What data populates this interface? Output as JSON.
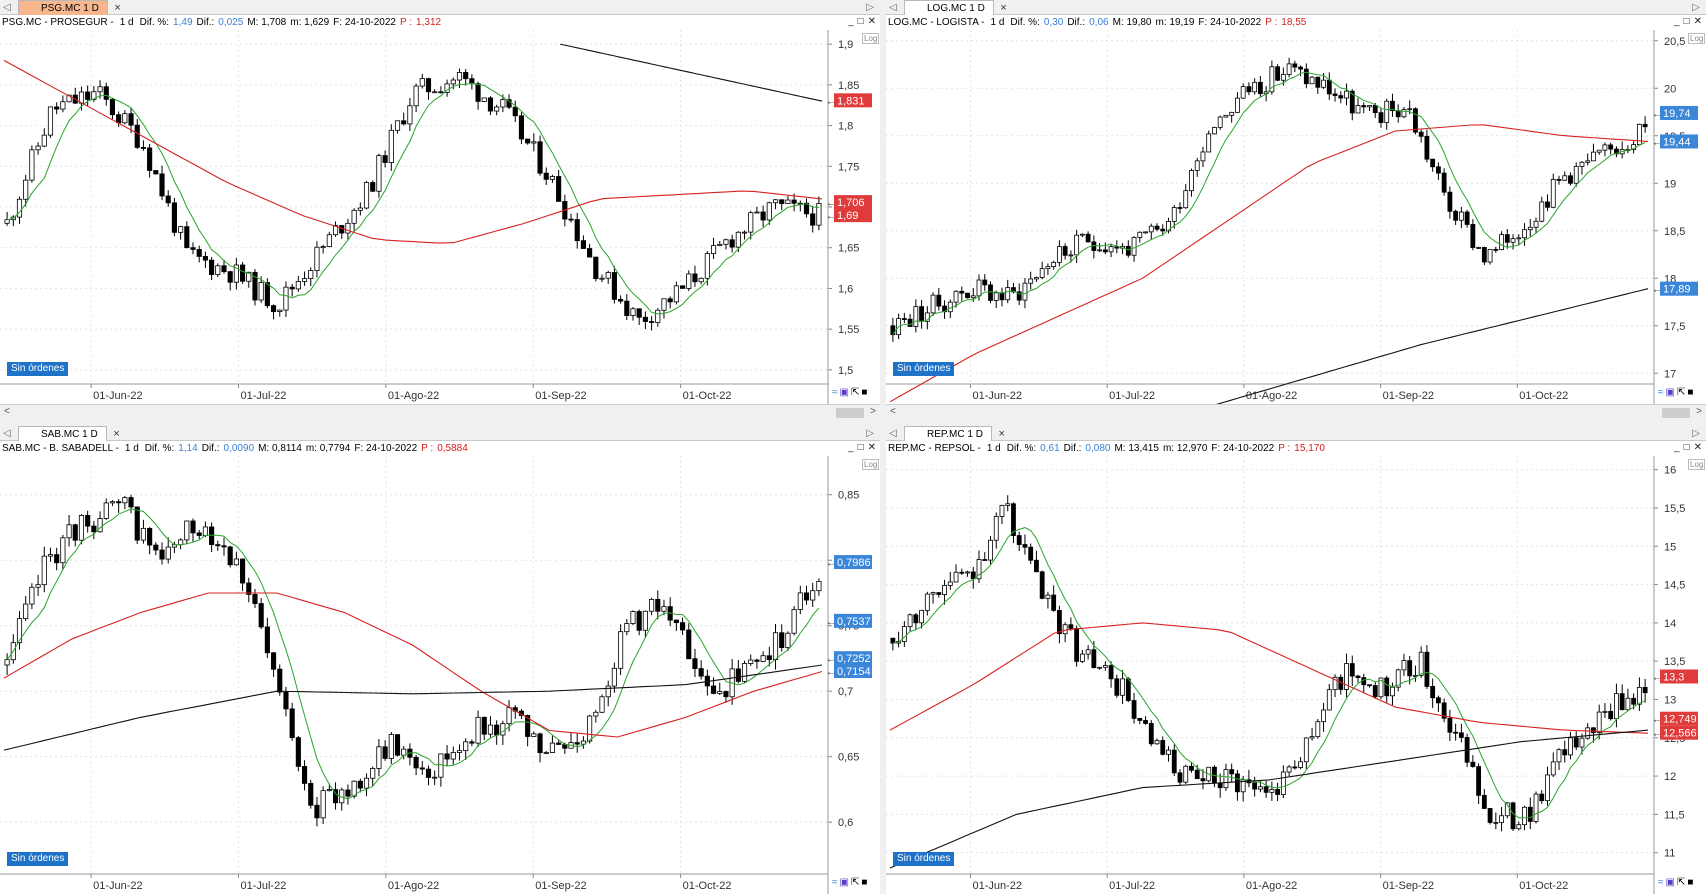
{
  "panels": [
    {
      "id": "psg",
      "tab": "PSG.MC 1 D",
      "tab_active": true,
      "header": {
        "name": "PSG.MC - PROSEGUR -",
        "tf": "1 d",
        "difpct_label": "Dif. %:",
        "difpct": "1,49",
        "dif_label": "Dif.:",
        "dif": "0,025",
        "m_high": "M: 1,708",
        "m_low": "m: 1,629",
        "date": "F: 24-10-2022",
        "p_label": "P :",
        "p": "1,312"
      },
      "log_label": "Log",
      "sin_ordenes": "Sin órdenes",
      "yticks": [
        "1,9",
        "1,85",
        "1,8",
        "1,75",
        "1,7",
        "1,65",
        "1,6",
        "1,55",
        "1,5"
      ],
      "ymin": 1.49,
      "ymax": 1.91,
      "xticks": [
        "01-Jun-22",
        "01-Jul-22",
        "01-Ago-22",
        "01-Sep-22",
        "01-Oct-22"
      ],
      "price_labels": [
        {
          "value": "1,831",
          "v": 1.831,
          "color": "#e03a3a"
        },
        {
          "value": "1,706",
          "v": 1.706,
          "color": "#e03a3a"
        },
        {
          "value": "1,69",
          "v": 1.69,
          "color": "#e03a3a"
        }
      ],
      "seed": 11,
      "ma200": [
        1.9,
        1.83
      ],
      "ma50": [
        1.88,
        1.83,
        1.78,
        1.73,
        1.69,
        1.66,
        1.655,
        1.68,
        1.71,
        1.715,
        1.72,
        1.71
      ],
      "trend": [
        1.68,
        1.82,
        1.84,
        1.78,
        1.64,
        1.62,
        1.58,
        1.65,
        1.72,
        1.84,
        1.86,
        1.82,
        1.74,
        1.63,
        1.56,
        1.6,
        1.66,
        1.7,
        1.69
      ]
    },
    {
      "id": "log",
      "tab": "LOG.MC 1 D",
      "tab_active": false,
      "header": {
        "name": "LOG.MC - LOGISTA -",
        "tf": "1 d",
        "difpct_label": "Dif. %:",
        "difpct": "0,30",
        "dif_label": "Dif.:",
        "dif": "0,06",
        "m_high": "M: 19,80",
        "m_low": "m: 19,19",
        "date": "F: 24-10-2022",
        "p_label": "P :",
        "p": "18,55"
      },
      "log_label": "Log",
      "sin_ordenes": "Sin órdenes",
      "yticks": [
        "20,5",
        "20",
        "19,5",
        "19",
        "18,5",
        "18",
        "17,5",
        "17"
      ],
      "ymin": 16.95,
      "ymax": 20.55,
      "xticks": [
        "01-Jun-22",
        "01-Jul-22",
        "01-Ago-22",
        "01-Sep-22",
        "01-Oct-22"
      ],
      "price_labels": [
        {
          "value": "19,74",
          "v": 19.74,
          "color": "#3a86d8"
        },
        {
          "value": "19,44",
          "v": 19.44,
          "color": "#3a86d8"
        },
        {
          "value": "17,89",
          "v": 17.89,
          "color": "#3a86d8"
        }
      ],
      "seed": 23,
      "ma200": [
        16.6,
        17.3,
        17.89
      ],
      "ma50": [
        16.7,
        17.2,
        17.6,
        18.0,
        18.6,
        19.2,
        19.55,
        19.62,
        19.5,
        19.44
      ],
      "trend": [
        17.5,
        17.7,
        17.9,
        17.8,
        18.2,
        18.4,
        18.3,
        18.6,
        19.6,
        20.0,
        20.2,
        20.0,
        19.7,
        19.8,
        18.8,
        18.2,
        18.6,
        19.1,
        19.3,
        19.6
      ]
    },
    {
      "id": "sab",
      "tab": "SAB.MC 1 D",
      "tab_active": false,
      "header": {
        "name": "SAB.MC - B. SABADELL -",
        "tf": "1 d",
        "difpct_label": "Dif. %:",
        "difpct": "1,14",
        "dif_label": "Dif.:",
        "dif": "0,0090",
        "m_high": "M: 0,8114",
        "m_low": "m: 0,7794",
        "date": "F: 24-10-2022",
        "p_label": "P :",
        "p": "0,5884"
      },
      "log_label": "Log",
      "sin_ordenes": "Sin órdenes",
      "yticks": [
        "0,85",
        "0,8",
        "0,75",
        "0,7",
        "0,65",
        "0,6"
      ],
      "ymin": 0.565,
      "ymax": 0.875,
      "xticks": [
        "01-Jun-22",
        "01-Jul-22",
        "01-Ago-22",
        "01-Sep-22",
        "01-Oct-22"
      ],
      "price_labels": [
        {
          "value": "0,7986",
          "v": 0.7986,
          "color": "#3a86d8"
        },
        {
          "value": "0,7537",
          "v": 0.7537,
          "color": "#3a86d8"
        },
        {
          "value": "0,7252",
          "v": 0.7252,
          "color": "#3a86d8"
        },
        {
          "value": "0,7154",
          "v": 0.7154,
          "color": "#3a86d8"
        }
      ],
      "seed": 37,
      "ma200": [
        0.655,
        0.68,
        0.7,
        0.698,
        0.7,
        0.705,
        0.72
      ],
      "ma50": [
        0.71,
        0.74,
        0.76,
        0.775,
        0.775,
        0.76,
        0.735,
        0.7,
        0.67,
        0.665,
        0.68,
        0.7,
        0.715
      ],
      "trend": [
        0.72,
        0.8,
        0.83,
        0.84,
        0.8,
        0.83,
        0.8,
        0.7,
        0.61,
        0.63,
        0.66,
        0.64,
        0.67,
        0.68,
        0.65,
        0.67,
        0.75,
        0.77,
        0.7,
        0.71,
        0.74,
        0.79
      ]
    },
    {
      "id": "rep",
      "tab": "REP.MC 1 D",
      "tab_active": false,
      "header": {
        "name": "REP.MC - REPSOL -",
        "tf": "1 d",
        "difpct_label": "Dif. %:",
        "difpct": "0,61",
        "dif_label": "Dif.:",
        "dif": "0,080",
        "m_high": "M: 13,415",
        "m_low": "m: 12,970",
        "date": "F: 24-10-2022",
        "p_label": "P :",
        "p": "15,170"
      },
      "log_label": "Log",
      "sin_ordenes": "Sin órdenes",
      "yticks": [
        "16",
        "15,5",
        "15",
        "14,5",
        "14",
        "13,5",
        "13",
        "12,5",
        "12",
        "11,5",
        "11"
      ],
      "ymin": 10.8,
      "ymax": 16.1,
      "xticks": [
        "01-Jun-22",
        "01-Jul-22",
        "01-Ago-22",
        "01-Sep-22",
        "01-Oct-22"
      ],
      "price_labels": [
        {
          "value": "13,3",
          "v": 13.3,
          "color": "#e03a3a"
        },
        {
          "value": "12,749",
          "v": 12.749,
          "color": "#e03a3a"
        },
        {
          "value": "12,566",
          "v": 12.566,
          "color": "#e03a3a"
        }
      ],
      "seed": 53,
      "ma200": [
        10.8,
        11.5,
        11.85,
        11.95,
        12.2,
        12.45,
        12.6
      ],
      "ma50": [
        12.6,
        13.2,
        13.9,
        14.0,
        13.9,
        13.4,
        12.9,
        12.7,
        12.6,
        12.56
      ],
      "trend": [
        13.8,
        14.4,
        14.6,
        15.5,
        14.3,
        13.6,
        13.2,
        12.3,
        11.9,
        12.0,
        11.8,
        12.4,
        13.4,
        13.1,
        13.5,
        12.5,
        11.4,
        11.6,
        12.4,
        12.8,
        13.2
      ]
    }
  ]
}
